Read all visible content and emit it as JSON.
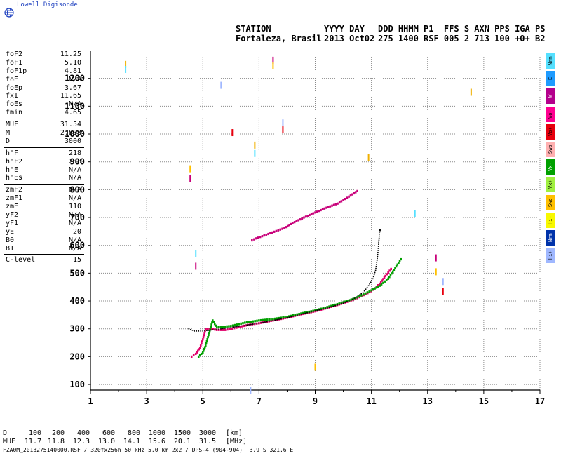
{
  "brand": {
    "name": "Lowell Digisonde",
    "logo": "globe-icon"
  },
  "header": {
    "line1": {
      "station": "STATION",
      "date": "YYYY DAY",
      "codes": "DDD HHMM P1  FFS S AXN PPS IGA PS"
    },
    "line2": {
      "station": "Fortaleza, Brasil",
      "date": "2013 Oct02",
      "codes": "275 1400 RSF 005 2 713 100 +0+ B2"
    }
  },
  "parameters": [
    [
      {
        "label": "foF2",
        "value": "11.25"
      },
      {
        "label": "foF1",
        "value": "5.10"
      },
      {
        "label": "foF1p",
        "value": "4.81"
      },
      {
        "label": "foE",
        "value": "N/A"
      },
      {
        "label": "foEp",
        "value": "3.67"
      },
      {
        "label": "fxI",
        "value": "11.65"
      },
      {
        "label": "foEs",
        "value": "N/A"
      },
      {
        "label": "fmin",
        "value": "4.65"
      }
    ],
    [
      {
        "label": "MUF",
        "value": "31.54"
      },
      {
        "label": "M",
        "value": "2.803"
      },
      {
        "label": "D",
        "value": "3000"
      }
    ],
    [
      {
        "label": "h'F",
        "value": "218"
      },
      {
        "label": "h'F2",
        "value": "288"
      },
      {
        "label": "h'E",
        "value": "N/A"
      },
      {
        "label": "h'Es",
        "value": "N/A"
      }
    ],
    [
      {
        "label": "zmF2",
        "value": "N/A"
      },
      {
        "label": "zmF1",
        "value": "N/A"
      },
      {
        "label": "zmE",
        "value": "110"
      },
      {
        "label": "yF2",
        "value": "N/A"
      },
      {
        "label": "yF1",
        "value": "N/A"
      },
      {
        "label": "yE",
        "value": "20"
      },
      {
        "label": "B0",
        "value": "N/A"
      },
      {
        "label": "B1",
        "value": "N/A"
      }
    ],
    [
      {
        "label": "C-level",
        "value": "15"
      }
    ]
  ],
  "legend": [
    {
      "label": "Nrm",
      "color": "#55e0ff"
    },
    {
      "label": "E",
      "color": "#1e9bff"
    },
    {
      "label": "W",
      "color": "#b4008c"
    },
    {
      "label": "Vo-",
      "color": "#ff0090"
    },
    {
      "label": "Vo+",
      "color": "#e8000e"
    },
    {
      "label": "Swo",
      "color": "#ffb0b0"
    },
    {
      "label": "Vx-",
      "color": "#00a000"
    },
    {
      "label": "Vx+",
      "color": "#a0f040"
    },
    {
      "label": "Swe",
      "color": "#ffc000"
    },
    {
      "label": "Hi-",
      "color": "#f8f800"
    },
    {
      "label": "Nrm",
      "color": "#0033aa"
    },
    {
      "label": "Hi+",
      "color": "#a0b8ff"
    }
  ],
  "chart_data": {
    "type": "scatter",
    "title": "",
    "xlabel": "",
    "ylabel": "",
    "xlim": [
      1,
      17
    ],
    "ylim": [
      80,
      1300
    ],
    "x_ticks": [
      1,
      3,
      5,
      7,
      9,
      11,
      13,
      15,
      17
    ],
    "y_ticks": [
      100,
      200,
      300,
      400,
      500,
      600,
      700,
      800,
      900,
      1000,
      1100,
      1200
    ],
    "grid": true,
    "series": [
      {
        "name": "O trace (F layer)",
        "color": "#e0006a",
        "points": [
          [
            4.6,
            200
          ],
          [
            4.75,
            210
          ],
          [
            4.9,
            232
          ],
          [
            5.0,
            262
          ],
          [
            5.1,
            300
          ],
          [
            5.3,
            300
          ],
          [
            5.5,
            296
          ],
          [
            5.8,
            296
          ],
          [
            6.2,
            304
          ],
          [
            6.6,
            314
          ],
          [
            7.0,
            320
          ],
          [
            7.5,
            330
          ],
          [
            8.0,
            340
          ],
          [
            8.5,
            352
          ],
          [
            9.0,
            363
          ],
          [
            9.5,
            377
          ],
          [
            10.0,
            392
          ],
          [
            10.5,
            410
          ],
          [
            10.8,
            425
          ],
          [
            11.0,
            435
          ],
          [
            11.3,
            462
          ],
          [
            11.5,
            490
          ],
          [
            11.7,
            515
          ]
        ]
      },
      {
        "name": "X trace (F layer)",
        "color": "#00a000",
        "points": [
          [
            4.85,
            200
          ],
          [
            5.0,
            215
          ],
          [
            5.1,
            240
          ],
          [
            5.35,
            330
          ],
          [
            5.5,
            305
          ],
          [
            6.0,
            310
          ],
          [
            6.5,
            322
          ],
          [
            7.0,
            330
          ],
          [
            7.5,
            335
          ],
          [
            8.0,
            343
          ],
          [
            8.5,
            355
          ],
          [
            9.0,
            366
          ],
          [
            9.5,
            380
          ],
          [
            10.0,
            395
          ],
          [
            10.5,
            413
          ],
          [
            11.0,
            438
          ],
          [
            11.3,
            455
          ],
          [
            11.6,
            480
          ],
          [
            12.05,
            550
          ]
        ]
      },
      {
        "name": "Model profile",
        "color": "#000000",
        "points": [
          [
            4.5,
            300
          ],
          [
            4.7,
            292
          ],
          [
            5.0,
            292
          ],
          [
            5.5,
            298
          ],
          [
            6.0,
            305
          ],
          [
            7.0,
            320
          ],
          [
            8.0,
            340
          ],
          [
            9.0,
            365
          ],
          [
            9.5,
            377
          ],
          [
            10.0,
            392
          ],
          [
            10.4,
            410
          ],
          [
            10.7,
            430
          ],
          [
            10.9,
            455
          ],
          [
            11.05,
            480
          ],
          [
            11.15,
            510
          ],
          [
            11.22,
            560
          ],
          [
            11.3,
            655
          ]
        ]
      },
      {
        "name": "Multiple reflection",
        "color": "#c8007a",
        "points": [
          [
            6.75,
            618
          ],
          [
            6.9,
            625
          ],
          [
            7.9,
            662
          ],
          [
            8.2,
            680
          ],
          [
            8.6,
            700
          ],
          [
            9.0,
            718
          ],
          [
            9.4,
            735
          ],
          [
            9.8,
            750
          ],
          [
            10.2,
            775
          ],
          [
            10.5,
            795
          ]
        ]
      },
      {
        "name": "Scattered echoes",
        "color": "#f0b000",
        "points": [
          [
            2.25,
            1250
          ],
          [
            2.25,
            1232
          ],
          [
            4.55,
            840
          ],
          [
            4.55,
            875
          ],
          [
            5.65,
            1175
          ],
          [
            6.05,
            1005
          ],
          [
            6.85,
            960
          ],
          [
            6.85,
            930
          ],
          [
            7.5,
            1265
          ],
          [
            7.5,
            1245
          ],
          [
            7.85,
            1040
          ],
          [
            7.85,
            1015
          ],
          [
            10.9,
            915
          ],
          [
            12.55,
            715
          ],
          [
            13.3,
            555
          ],
          [
            13.3,
            505
          ],
          [
            13.55,
            470
          ],
          [
            13.55,
            435
          ],
          [
            14.55,
            1150
          ],
          [
            4.75,
            570
          ],
          [
            4.75,
            525
          ],
          [
            9.0,
            162
          ],
          [
            6.7,
            80
          ]
        ]
      }
    ],
    "bottom_axis_label": "[MHz]"
  },
  "footer": {
    "d_label": "D",
    "d_values": [
      "100",
      "200",
      "400",
      "600",
      "800",
      "1000",
      "1500",
      "3000"
    ],
    "d_unit": "[km]",
    "muf_label": "MUF",
    "muf_values": [
      "11.7",
      "11.8",
      "12.3",
      "13.0",
      "14.1",
      "15.6",
      "20.1",
      "31.5"
    ],
    "muf_unit": "[MHz]",
    "info": "FZA0M_2013275140000.RSF / 320fx256h 50 kHz 5.0 km 2x2 / DPS-4 (904-904)  3.9 S 321.6 E"
  }
}
